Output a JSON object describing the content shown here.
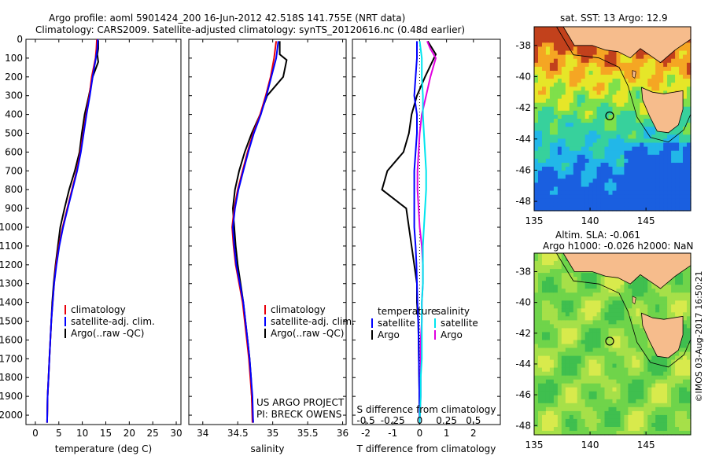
{
  "header": {
    "line1": "Argo profile: aoml 5901424_200 16-Jun-2012 42.518S 141.755E (NRT data)",
    "line2": "Climatology: CARS2009. Satellite-adjusted climatology: synTS_20120616.nc (0.48d earlier)"
  },
  "colors": {
    "climatology": "#e8000b",
    "satellite": "#0000ff",
    "argo": "#000000",
    "satellite_salinity": "#00e5ee",
    "argo_salinity": "#e000e0"
  },
  "chart_data": [
    {
      "type": "line",
      "xlabel": "temperature (deg C)",
      "ylabel": "",
      "xlim": [
        -2,
        31
      ],
      "ylim": [
        2050,
        0
      ],
      "xticks": [
        0,
        5,
        10,
        15,
        20,
        25,
        30
      ],
      "yticks": [
        0,
        100,
        200,
        300,
        400,
        500,
        600,
        700,
        800,
        900,
        1000,
        1100,
        1200,
        1300,
        1400,
        1500,
        1600,
        1700,
        1800,
        1900,
        2000
      ],
      "legend": [
        "climatology",
        "satellite-adj. clim.",
        "Argo(..raw -QC)"
      ],
      "series": [
        {
          "name": "climatology",
          "points": [
            [
              13.1,
              0
            ],
            [
              13.0,
              50
            ],
            [
              12.8,
              100
            ],
            [
              12.0,
              200
            ],
            [
              11.5,
              300
            ],
            [
              10.8,
              400
            ],
            [
              10.2,
              500
            ],
            [
              9.6,
              600
            ],
            [
              8.8,
              700
            ],
            [
              7.8,
              800
            ],
            [
              6.8,
              900
            ],
            [
              5.8,
              1000
            ],
            [
              5.0,
              1100
            ],
            [
              4.4,
              1200
            ],
            [
              4.0,
              1300
            ],
            [
              3.7,
              1400
            ],
            [
              3.4,
              1500
            ],
            [
              3.2,
              1600
            ],
            [
              3.0,
              1700
            ],
            [
              2.8,
              1800
            ],
            [
              2.6,
              1900
            ],
            [
              2.5,
              2040
            ]
          ]
        },
        {
          "name": "satellite-adj. clim.",
          "points": [
            [
              13.3,
              0
            ],
            [
              13.2,
              50
            ],
            [
              12.9,
              100
            ],
            [
              12.2,
              200
            ],
            [
              11.6,
              300
            ],
            [
              10.9,
              400
            ],
            [
              10.3,
              500
            ],
            [
              9.7,
              600
            ],
            [
              8.9,
              700
            ],
            [
              7.9,
              800
            ],
            [
              6.9,
              900
            ],
            [
              5.9,
              1000
            ],
            [
              5.1,
              1100
            ],
            [
              4.5,
              1200
            ],
            [
              4.0,
              1300
            ],
            [
              3.7,
              1400
            ],
            [
              3.4,
              1500
            ],
            [
              3.2,
              1600
            ],
            [
              3.0,
              1700
            ],
            [
              2.8,
              1800
            ],
            [
              2.6,
              1900
            ],
            [
              2.5,
              2040
            ]
          ]
        },
        {
          "name": "Argo(..raw -QC)",
          "points": [
            [
              13.4,
              5
            ],
            [
              13.4,
              50
            ],
            [
              13.2,
              80
            ],
            [
              13.4,
              120
            ],
            [
              12.2,
              200
            ],
            [
              11.4,
              300
            ],
            [
              10.5,
              400
            ],
            [
              9.9,
              500
            ],
            [
              9.4,
              600
            ],
            [
              8.4,
              700
            ],
            [
              7.2,
              800
            ],
            [
              6.2,
              900
            ],
            [
              5.3,
              1000
            ],
            [
              4.8,
              1100
            ],
            [
              4.3,
              1200
            ],
            [
              3.9,
              1300
            ],
            [
              3.6,
              1400
            ],
            [
              3.4,
              1500
            ],
            [
              3.2,
              1600
            ],
            [
              3.0,
              1700
            ],
            [
              2.8,
              1800
            ],
            [
              2.6,
              1900
            ],
            [
              2.5,
              2040
            ]
          ]
        }
      ]
    },
    {
      "type": "line",
      "xlabel": "salinity",
      "ylabel": "",
      "xlim": [
        33.8,
        36.05
      ],
      "ylim": [
        2050,
        0
      ],
      "xticks": [
        34,
        34.5,
        35,
        35.5,
        36
      ],
      "legend": [
        "climatology",
        "satellite-adj. clim.",
        "Argo(..raw -QC)"
      ],
      "annotations": [
        "US ARGO PROJECT",
        "PI: BRECK OWENS"
      ],
      "series": [
        {
          "name": "climatology",
          "points": [
            [
              35.05,
              10
            ],
            [
              35.02,
              100
            ],
            [
              34.97,
              200
            ],
            [
              34.9,
              300
            ],
            [
              34.82,
              400
            ],
            [
              34.72,
              500
            ],
            [
              34.64,
              600
            ],
            [
              34.57,
              700
            ],
            [
              34.5,
              800
            ],
            [
              34.45,
              900
            ],
            [
              34.42,
              1000
            ],
            [
              34.44,
              1100
            ],
            [
              34.47,
              1200
            ],
            [
              34.52,
              1300
            ],
            [
              34.57,
              1400
            ],
            [
              34.6,
              1500
            ],
            [
              34.63,
              1600
            ],
            [
              34.66,
              1700
            ],
            [
              34.68,
              1800
            ],
            [
              34.7,
              1900
            ],
            [
              34.71,
              2040
            ]
          ]
        },
        {
          "name": "satellite-adj. clim.",
          "points": [
            [
              35.08,
              10
            ],
            [
              35.05,
              100
            ],
            [
              34.98,
              200
            ],
            [
              34.91,
              300
            ],
            [
              34.83,
              400
            ],
            [
              34.73,
              500
            ],
            [
              34.65,
              600
            ],
            [
              34.58,
              700
            ],
            [
              34.51,
              800
            ],
            [
              34.46,
              900
            ],
            [
              34.43,
              1000
            ],
            [
              34.45,
              1100
            ],
            [
              34.48,
              1200
            ],
            [
              34.53,
              1300
            ],
            [
              34.58,
              1400
            ],
            [
              34.61,
              1500
            ],
            [
              34.64,
              1600
            ],
            [
              34.67,
              1700
            ],
            [
              34.69,
              1800
            ],
            [
              34.71,
              1900
            ],
            [
              34.72,
              2040
            ]
          ]
        },
        {
          "name": "Argo(..raw -QC)",
          "points": [
            [
              35.1,
              10
            ],
            [
              35.1,
              80
            ],
            [
              35.2,
              110
            ],
            [
              35.15,
              200
            ],
            [
              34.92,
              300
            ],
            [
              34.82,
              400
            ],
            [
              34.7,
              500
            ],
            [
              34.6,
              600
            ],
            [
              34.52,
              700
            ],
            [
              34.46,
              800
            ],
            [
              34.43,
              900
            ],
            [
              34.45,
              1000
            ],
            [
              34.47,
              1100
            ],
            [
              34.5,
              1200
            ],
            [
              34.54,
              1300
            ],
            [
              34.58,
              1400
            ],
            [
              34.61,
              1500
            ],
            [
              34.64,
              1600
            ],
            [
              34.67,
              1700
            ],
            [
              34.69,
              1800
            ],
            [
              34.7,
              1900
            ],
            [
              34.72,
              2040
            ]
          ]
        }
      ]
    },
    {
      "type": "line",
      "xlabel": "T difference from climatology",
      "xlabel_top": "S difference from climatology",
      "xlim": [
        -2.5,
        3.0
      ],
      "ylim": [
        2050,
        0
      ],
      "xticks": [
        -2,
        -1,
        0,
        1,
        2
      ],
      "xticks_top": [
        "-0.5",
        "-0.25",
        "0",
        "0.25",
        "0.5"
      ],
      "legend_groups": [
        {
          "title": "temperature",
          "items": [
            "satellite",
            "Argo"
          ]
        },
        {
          "title": "salinity",
          "items": [
            "satellite",
            "Argo"
          ]
        }
      ],
      "series": [
        {
          "name": "satellite",
          "quantity": "temperature",
          "points": [
            [
              -0.1,
              10
            ],
            [
              -0.1,
              100
            ],
            [
              -0.15,
              200
            ],
            [
              -0.2,
              300
            ],
            [
              -0.1,
              400
            ],
            [
              -0.1,
              500
            ],
            [
              -0.15,
              600
            ],
            [
              -0.2,
              700
            ],
            [
              -0.2,
              800
            ],
            [
              -0.2,
              900
            ],
            [
              -0.2,
              1000
            ],
            [
              -0.15,
              1100
            ],
            [
              -0.12,
              1200
            ],
            [
              -0.1,
              1300
            ],
            [
              -0.08,
              1400
            ],
            [
              -0.05,
              1500
            ],
            [
              -0.04,
              1600
            ],
            [
              -0.03,
              1700
            ],
            [
              -0.02,
              1800
            ],
            [
              -0.01,
              1900
            ],
            [
              0.0,
              2040
            ]
          ]
        },
        {
          "name": "Argo",
          "quantity": "temperature",
          "points": [
            [
              0.3,
              10
            ],
            [
              0.6,
              80
            ],
            [
              0.2,
              200
            ],
            [
              -0.1,
              300
            ],
            [
              -0.3,
              400
            ],
            [
              -0.4,
              500
            ],
            [
              -0.6,
              600
            ],
            [
              -1.2,
              700
            ],
            [
              -1.4,
              800
            ],
            [
              -0.5,
              900
            ],
            [
              -0.4,
              1000
            ],
            [
              -0.3,
              1100
            ],
            [
              -0.2,
              1200
            ],
            [
              -0.1,
              1300
            ],
            [
              -0.1,
              1400
            ],
            [
              -0.05,
              1500
            ],
            [
              -0.04,
              1600
            ],
            [
              -0.03,
              1700
            ],
            [
              -0.02,
              1800
            ],
            [
              -0.01,
              1900
            ],
            [
              0.0,
              2040
            ]
          ]
        },
        {
          "name": "satellite",
          "quantity": "salinity",
          "points": [
            [
              0.0,
              10
            ],
            [
              0.02,
              100
            ],
            [
              0.02,
              200
            ],
            [
              0.03,
              300
            ],
            [
              0.03,
              400
            ],
            [
              0.04,
              500
            ],
            [
              0.05,
              600
            ],
            [
              0.06,
              700
            ],
            [
              0.06,
              800
            ],
            [
              0.05,
              900
            ],
            [
              0.04,
              1000
            ],
            [
              0.03,
              1100
            ],
            [
              0.03,
              1200
            ],
            [
              0.03,
              1300
            ],
            [
              0.02,
              1400
            ],
            [
              0.02,
              1500
            ],
            [
              0.02,
              1600
            ],
            [
              0.02,
              1700
            ],
            [
              0.01,
              1800
            ],
            [
              0.01,
              1900
            ],
            [
              0.0,
              2040
            ]
          ]
        },
        {
          "name": "Argo",
          "quantity": "salinity",
          "points": [
            [
              0.07,
              10
            ],
            [
              0.1,
              50
            ],
            [
              0.15,
              100
            ],
            [
              0.1,
              200
            ],
            [
              0.06,
              300
            ],
            [
              0.02,
              400
            ],
            [
              0.0,
              500
            ],
            [
              -0.01,
              600
            ],
            [
              -0.02,
              700
            ],
            [
              -0.02,
              800
            ],
            [
              -0.01,
              900
            ],
            [
              0.0,
              1000
            ],
            [
              0.02,
              1100
            ],
            [
              0.03,
              1200
            ],
            [
              0.03,
              1300
            ],
            [
              0.02,
              1400
            ],
            [
              0.02,
              1500
            ],
            [
              0.01,
              1600
            ],
            [
              0.01,
              1700
            ],
            [
              0.01,
              1800
            ],
            [
              0.01,
              1900
            ],
            [
              0.0,
              2040
            ]
          ]
        }
      ]
    },
    {
      "type": "heatmap",
      "title": "sat. SST: 13 Argo: 12.9",
      "xlim": [
        135,
        149
      ],
      "ylim": [
        -48.6,
        -36.8
      ],
      "xticks": [
        135,
        140,
        145
      ],
      "yticks": [
        -38,
        -40,
        -42,
        -44,
        -46,
        -48
      ],
      "profile_location": [
        141.755,
        -42.518
      ]
    },
    {
      "type": "heatmap",
      "title_lines": [
        "Altim. SLA: -0.061",
        "Argo h1000: -0.026 h2000: NaN"
      ],
      "xlim": [
        135,
        149
      ],
      "ylim": [
        -48.6,
        -36.8
      ],
      "xticks": [
        135,
        140,
        145
      ],
      "yticks": [
        -38,
        -40,
        -42,
        -44,
        -46,
        -48
      ],
      "profile_location": [
        141.755,
        -42.518
      ]
    }
  ],
  "footer": {
    "credit": "©IMOS 03-Aug-2017 16:50:21"
  }
}
